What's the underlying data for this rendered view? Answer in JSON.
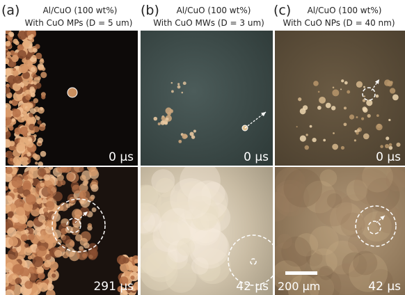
{
  "panels": [
    {
      "label": "(a)",
      "title": "Al/CuO (100 wt%)",
      "subtitle": "With  CuO MPs (D = 5 um)",
      "frames": [
        "0 µs",
        "291 µs"
      ]
    },
    {
      "label": "(b)",
      "title": "Al/CuO (100 wt%)",
      "subtitle": "With  CuO MWs (D = 3 um)",
      "frames": [
        "0 µs",
        "42 µs"
      ]
    },
    {
      "label": "(c)",
      "title": "Al/CuO (100 wt%)",
      "subtitle": "With  CuO NPs (D = 40 nm)",
      "frames": [
        "0 µs",
        "42 µs"
      ]
    }
  ],
  "scale_bar": "200 µm"
}
